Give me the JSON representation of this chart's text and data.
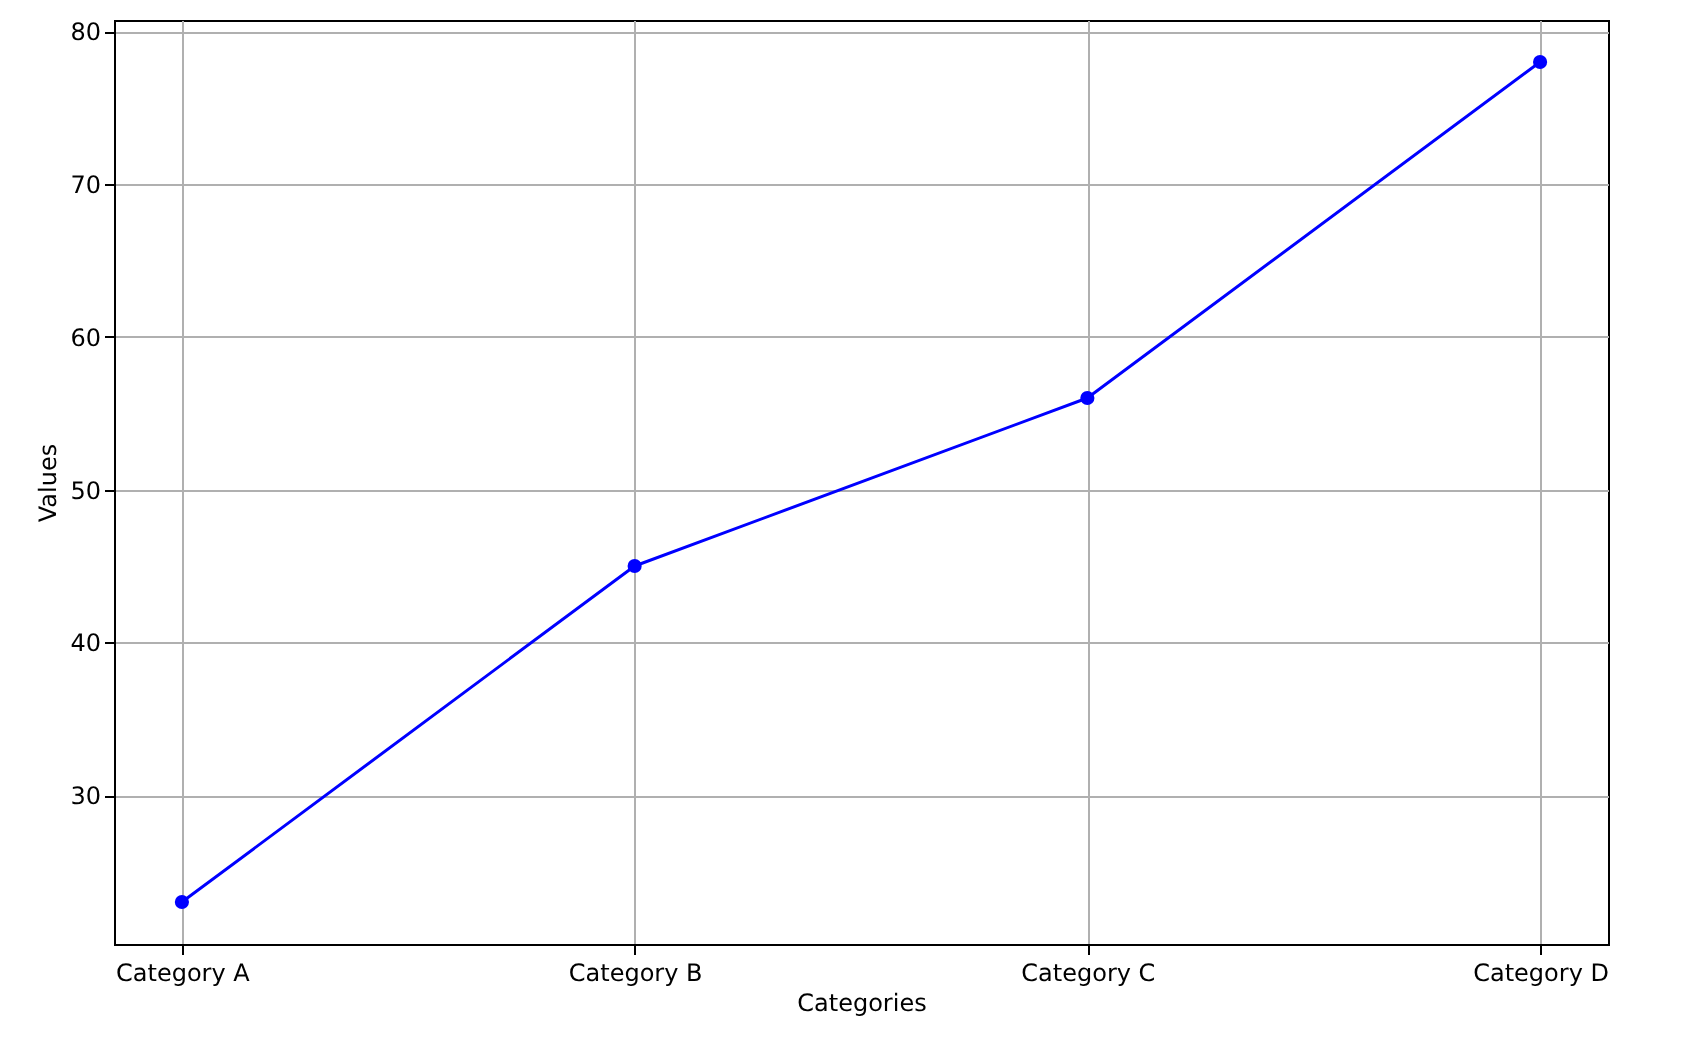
{
  "chart_data": {
    "type": "line",
    "xlabel": "Categories",
    "ylabel": "Values",
    "categories": [
      "Category A",
      "Category B",
      "Category C",
      "Category D"
    ],
    "series": [
      {
        "color": "#0000ff",
        "values": [
          23,
          45,
          56,
          78
        ]
      }
    ],
    "ylim": [
      20.25,
      80.75
    ],
    "yticks": [
      30,
      40,
      50,
      60,
      70,
      80
    ],
    "grid": true,
    "marker": "circle",
    "line_style": "solid"
  }
}
